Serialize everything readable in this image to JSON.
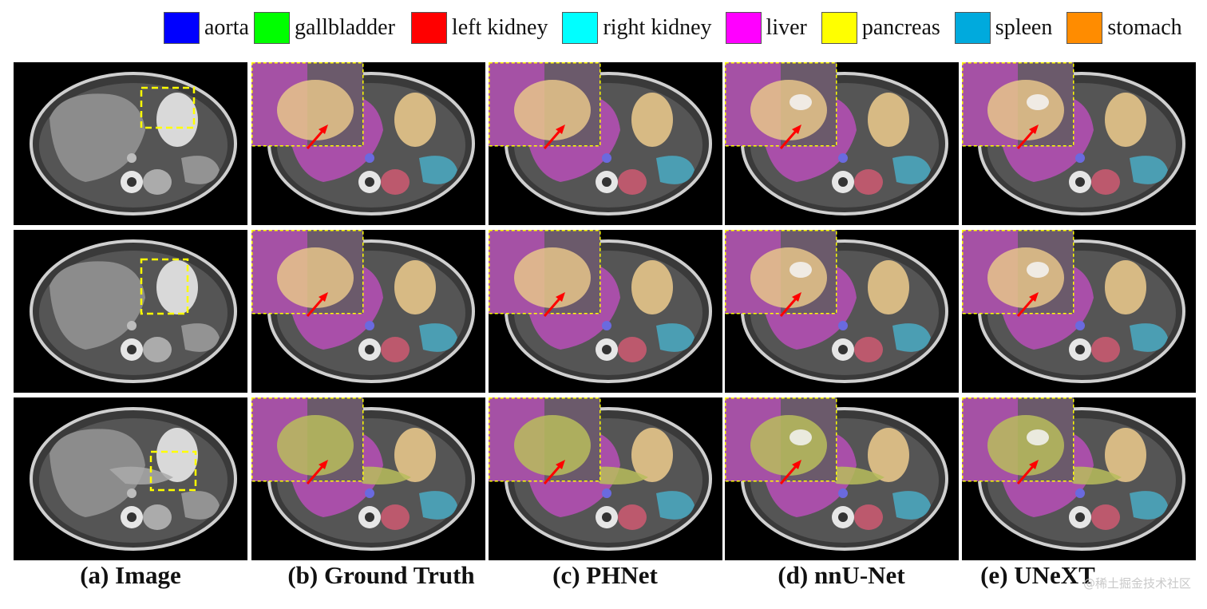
{
  "legend": [
    {
      "label": "aorta",
      "color": "#0000ff"
    },
    {
      "label": "gallbladder",
      "color": "#00ff00"
    },
    {
      "label": "left kidney",
      "color": "#ff0000"
    },
    {
      "label": "right kidney",
      "color": "#00ffff"
    },
    {
      "label": "liver",
      "color": "#ff00ff"
    },
    {
      "label": "pancreas",
      "color": "#ffff00"
    },
    {
      "label": "spleen",
      "color": "#00aadd"
    },
    {
      "label": "stomach",
      "color": "#ff8c00"
    }
  ],
  "captions": [
    "(a) Image",
    "(b) Ground Truth",
    "(c) PHNet",
    "(d) nnU-Net",
    "(e) UNeXT"
  ],
  "watermark": "@稀土掘金技术社区",
  "colors": {
    "liver_overlay": "#b84fb8",
    "stomach_overlay": "#e6c58a",
    "spleen_overlay": "#4aa6be",
    "kidney_overlay": "#c85a70",
    "pancreas_overlay": "#b8bd5c",
    "aorta_overlay": "#6a6adf",
    "zoom_box": "#ffff00",
    "arrow": "#ff0000"
  }
}
